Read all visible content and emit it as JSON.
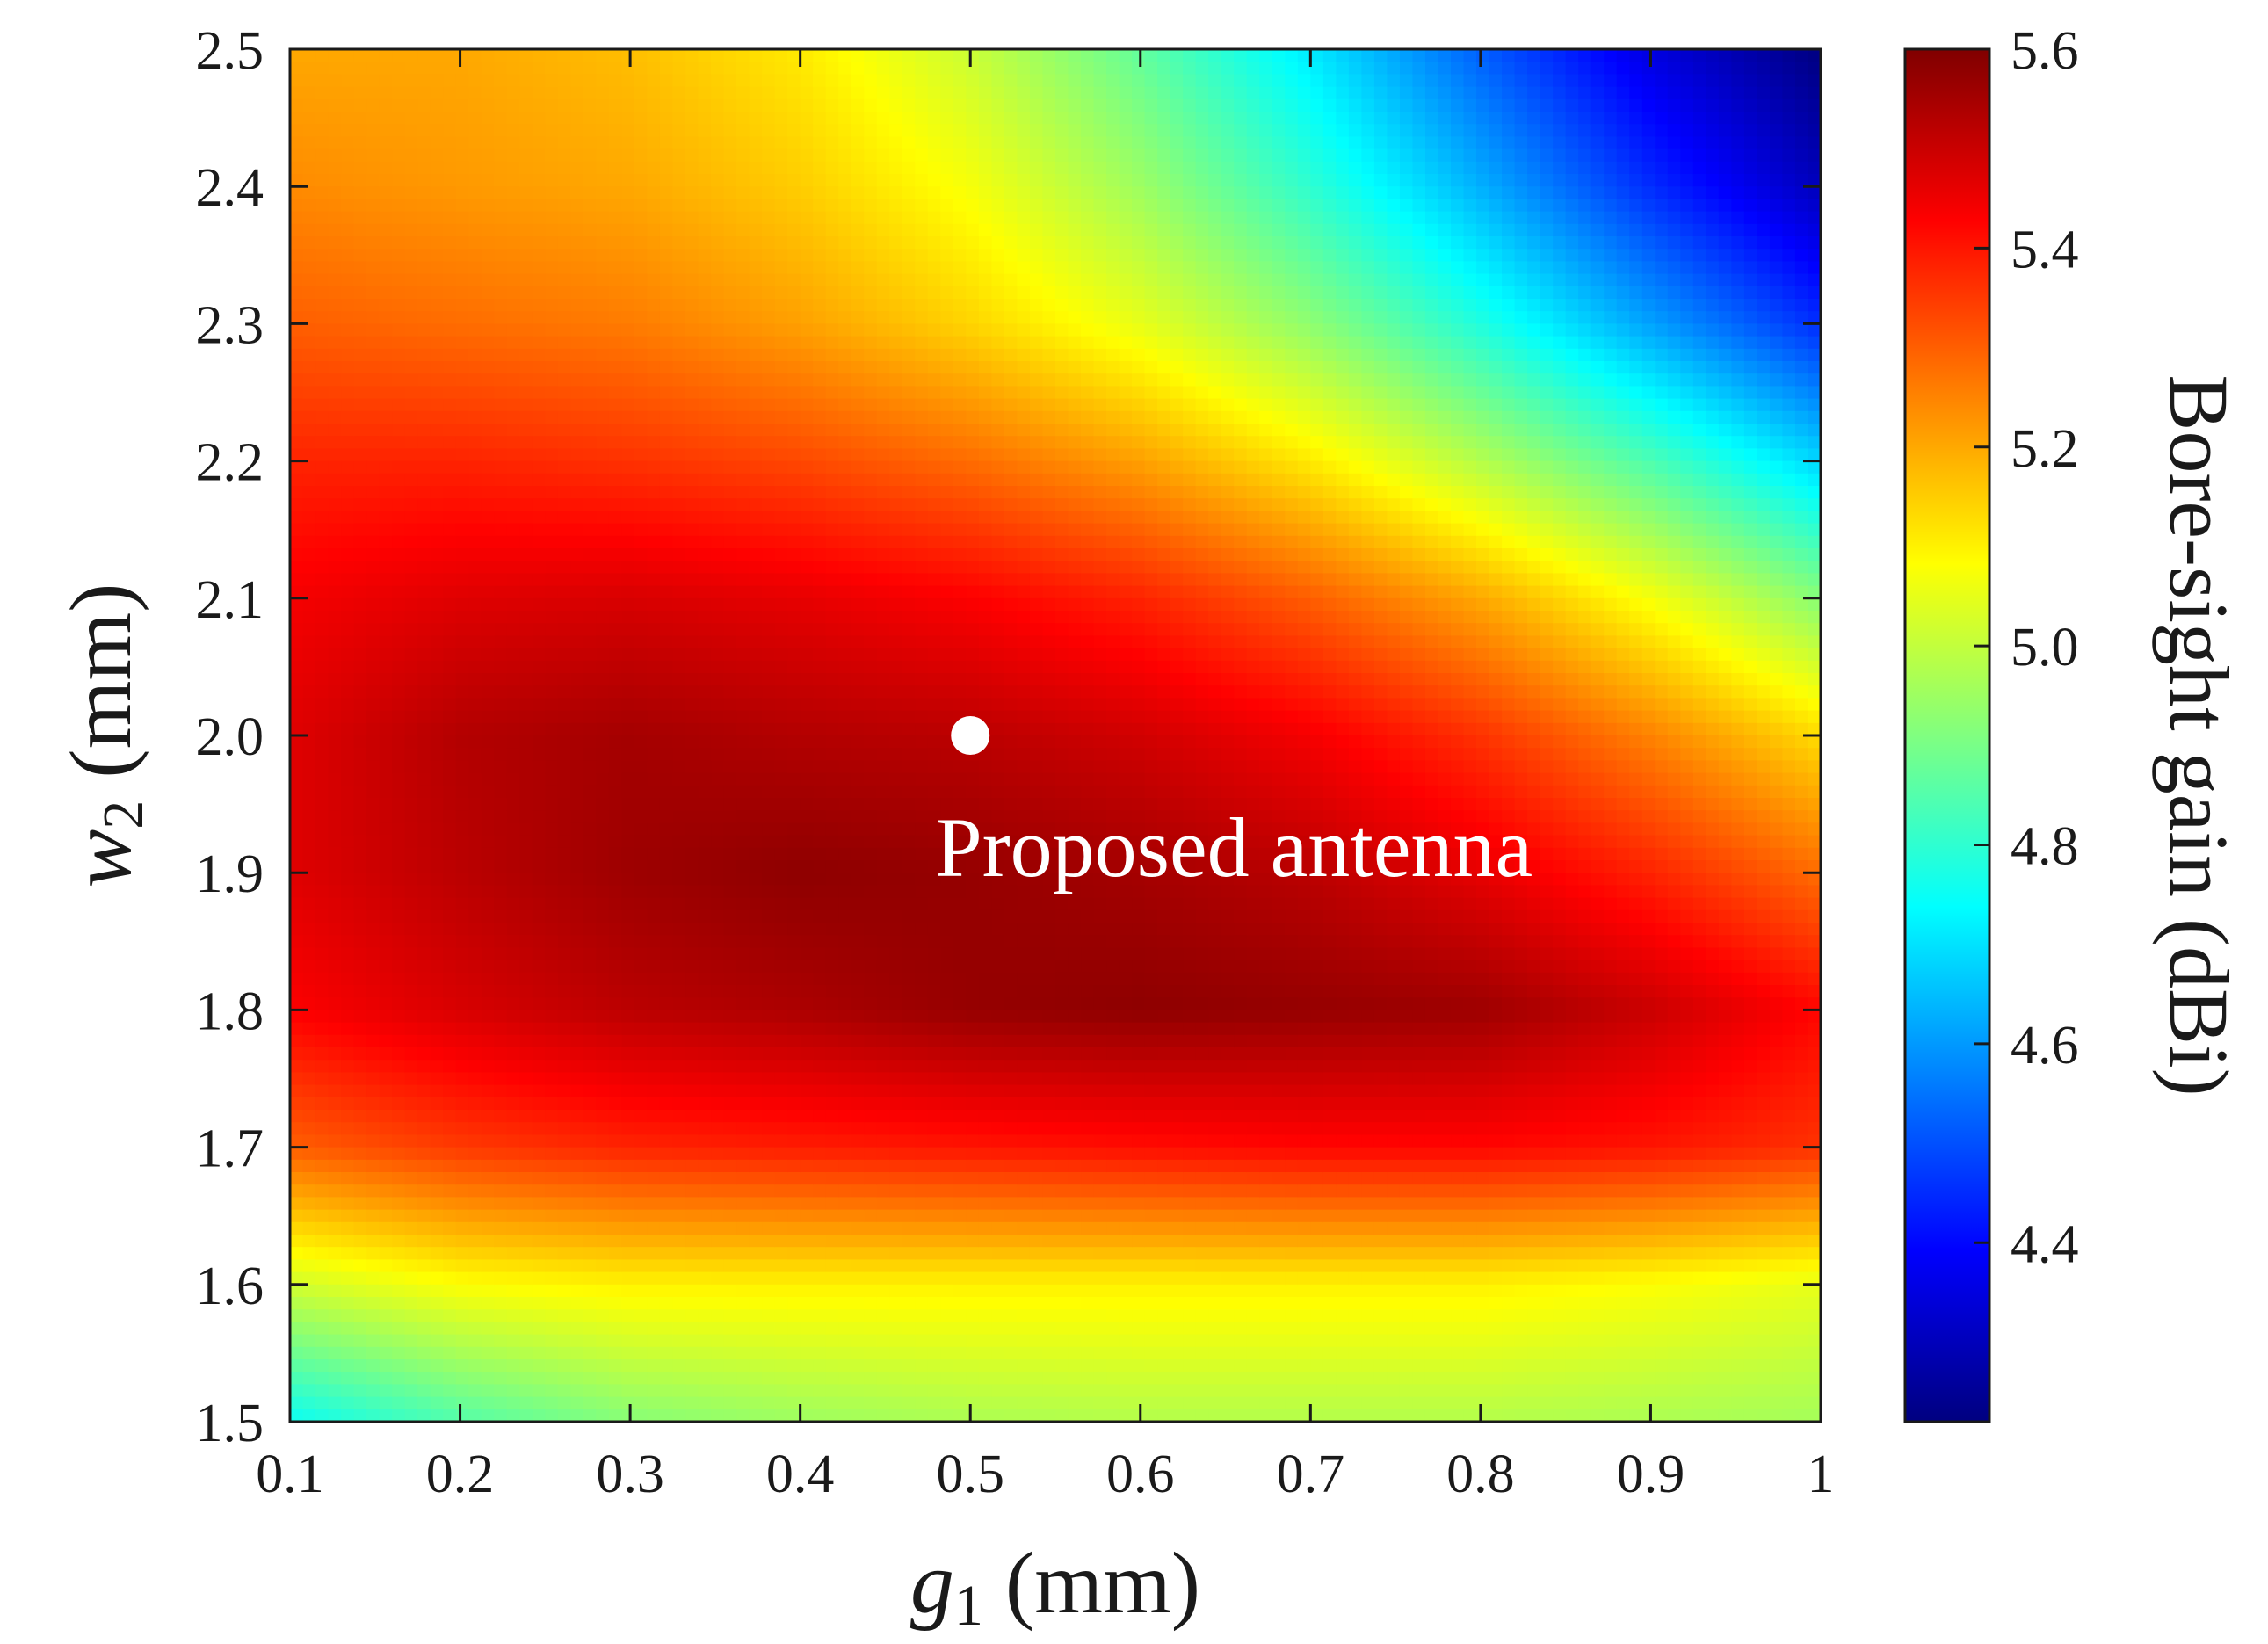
{
  "chart_data": {
    "type": "heatmap",
    "title": "",
    "xlabel": {
      "var": "g",
      "sub": "1",
      "unit": " (mm)"
    },
    "ylabel": {
      "var": "w",
      "sub": "2",
      "unit": " (mm)"
    },
    "xlim": [
      0.1,
      1.0
    ],
    "ylim": [
      1.5,
      2.5
    ],
    "x_ticks": [
      0.1,
      0.2,
      0.3,
      0.4,
      0.5,
      0.6,
      0.7,
      0.8,
      0.9,
      1.0
    ],
    "x_tick_labels": [
      "0.1",
      "0.2",
      "0.3",
      "0.4",
      "0.5",
      "0.6",
      "0.7",
      "0.8",
      "0.9",
      "1"
    ],
    "y_ticks": [
      1.5,
      1.6,
      1.7,
      1.8,
      1.9,
      2.0,
      2.1,
      2.2,
      2.3,
      2.4,
      2.5
    ],
    "y_tick_labels": [
      "1.5",
      "1.6",
      "1.7",
      "1.8",
      "1.9",
      "2.0",
      "2.1",
      "2.2",
      "2.3",
      "2.4",
      "2.5"
    ],
    "x": [
      0.1,
      0.2,
      0.3,
      0.4,
      0.5,
      0.6,
      0.7,
      0.8,
      0.9,
      1.0
    ],
    "y": [
      1.5,
      1.6,
      1.7,
      1.8,
      1.9,
      2.0,
      2.1,
      2.2,
      2.3,
      2.4,
      2.5
    ],
    "z": [
      [
        4.75,
        4.85,
        4.92,
        4.95,
        4.97,
        4.98,
        4.98,
        4.98,
        4.97,
        4.96
      ],
      [
        5.02,
        5.08,
        5.1,
        5.1,
        5.1,
        5.1,
        5.1,
        5.1,
        5.08,
        5.05
      ],
      [
        5.3,
        5.35,
        5.38,
        5.39,
        5.4,
        5.41,
        5.42,
        5.42,
        5.4,
        5.36
      ],
      [
        5.43,
        5.48,
        5.52,
        5.54,
        5.57,
        5.58,
        5.57,
        5.56,
        5.5,
        5.42
      ],
      [
        5.47,
        5.52,
        5.56,
        5.58,
        5.57,
        5.55,
        5.52,
        5.46,
        5.38,
        5.28
      ],
      [
        5.47,
        5.53,
        5.55,
        5.53,
        5.52,
        5.49,
        5.44,
        5.36,
        5.25,
        5.13
      ],
      [
        5.44,
        5.47,
        5.48,
        5.46,
        5.43,
        5.38,
        5.3,
        5.2,
        5.07,
        4.92
      ],
      [
        5.38,
        5.38,
        5.36,
        5.33,
        5.28,
        5.21,
        5.11,
        4.98,
        4.84,
        4.68
      ],
      [
        5.3,
        5.28,
        5.26,
        5.21,
        5.14,
        5.05,
        4.93,
        4.78,
        4.61,
        4.45
      ],
      [
        5.24,
        5.22,
        5.2,
        5.15,
        5.07,
        4.95,
        4.8,
        4.63,
        4.45,
        4.3
      ],
      [
        5.2,
        5.2,
        5.17,
        5.11,
        5.01,
        4.87,
        4.71,
        4.52,
        4.35,
        4.22
      ]
    ],
    "zlim": [
      4.22,
      5.6
    ],
    "colorbar": {
      "label": "Bore-sight gain (dBi)",
      "ticks": [
        4.4,
        4.6,
        4.8,
        5.0,
        5.2,
        5.4,
        5.6
      ],
      "tick_labels": [
        "4.4",
        "4.6",
        "4.8",
        "5.0",
        "5.2",
        "5.4",
        "5.6"
      ],
      "colormap": "jet"
    },
    "annotations": [
      {
        "x": 0.5,
        "y": 2.0,
        "marker": "circle",
        "text": "Proposed antenna"
      }
    ]
  },
  "colors": {
    "marker": "#ffffff",
    "annotation_text": "#ffffff",
    "axis": "#1a1a1a"
  }
}
